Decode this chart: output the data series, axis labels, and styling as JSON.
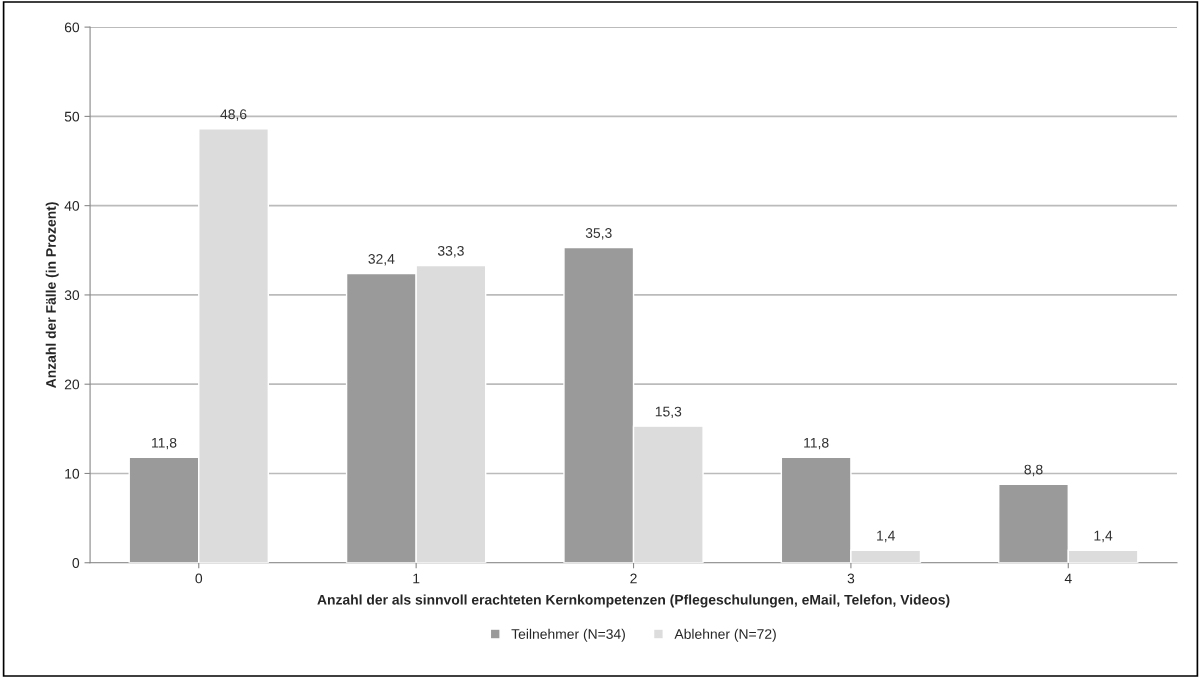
{
  "chart_data": {
    "type": "bar",
    "xlabel": "Anzahl der als sinnvoll erachteten Kernkompetenzen (Pflegeschulungen, eMail, Telefon, Videos)",
    "ylabel": "Anzahl der Fälle (in Prozent)",
    "categories": [
      "0",
      "1",
      "2",
      "3",
      "4"
    ],
    "series": [
      {
        "name": "Teilnehmer (N=34)",
        "color": "#9a9a9a",
        "values": [
          11.8,
          32.4,
          35.3,
          11.8,
          8.8
        ],
        "value_labels": [
          "11,8",
          "32,4",
          "35,3",
          "11,8",
          "8,8"
        ]
      },
      {
        "name": "Ablehner (N=72)",
        "color": "#dcdcdc",
        "values": [
          48.6,
          33.3,
          15.3,
          1.4,
          1.4
        ],
        "value_labels": [
          "48,6",
          "33,3",
          "15,3",
          "1,4",
          "1,4"
        ]
      }
    ],
    "ylim": [
      0,
      60
    ],
    "yticks": [
      0,
      10,
      20,
      30,
      40,
      50,
      60
    ],
    "grid": "y",
    "legend": "bottom"
  }
}
